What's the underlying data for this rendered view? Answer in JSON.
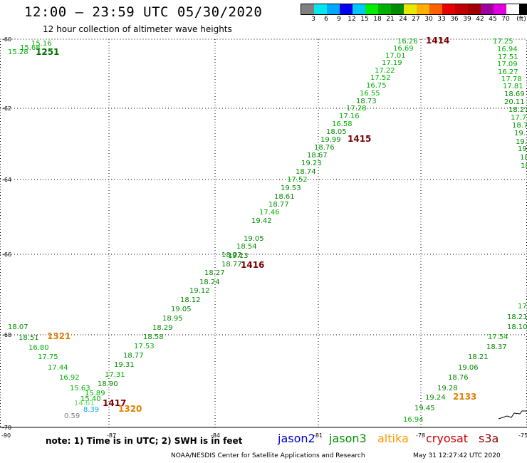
{
  "header": {
    "title": "12:00 – 23:59 UTC 05/30/2020",
    "subtitle": "12 hour collection of altimeter wave heights"
  },
  "colorbar": {
    "colors": [
      "#808080",
      "#00e8ee",
      "#00a8ff",
      "#0000ee",
      "#00c8ff",
      "#00ee00",
      "#00b000",
      "#008c00",
      "#e8e800",
      "#ffb000",
      "#ff6000",
      "#e80000",
      "#c00000",
      "#a00000",
      "#a000a0",
      "#e000e0",
      "#ffffff",
      "#000000"
    ],
    "tick_labels": [
      "3",
      "6",
      "9",
      "12",
      "15",
      "18",
      "21",
      "24",
      "27",
      "30",
      "33",
      "36",
      "39",
      "42",
      "45",
      "70",
      "(ft)"
    ]
  },
  "axes": {
    "lat_labels": [
      "-60",
      "-62",
      "-64",
      "-66",
      "-68",
      "-70"
    ],
    "lon_labels": [
      "-90",
      "-87",
      "-84",
      "-81",
      "-78",
      "-75"
    ]
  },
  "tracks": [
    {
      "id": "1251",
      "id_color": "#007000",
      "points": [
        {
          "v": "15.16",
          "c": "#00b000"
        },
        {
          "v": "15.68",
          "c": "#00b000"
        },
        {
          "v": "15.28",
          "c": "#00b000"
        }
      ]
    },
    {
      "id": "1414",
      "id_color": "#7a0000",
      "points": [
        {
          "v": "16.26",
          "c": "#00b000"
        },
        {
          "v": "16.69",
          "c": "#00b000"
        },
        {
          "v": "17.01",
          "c": "#00b000"
        },
        {
          "v": "17.19",
          "c": "#00b000"
        },
        {
          "v": "17.22",
          "c": "#00b000"
        },
        {
          "v": "17.52",
          "c": "#00b000"
        },
        {
          "v": "16.75",
          "c": "#00b000"
        },
        {
          "v": "16.55",
          "c": "#00b000"
        },
        {
          "v": "18.73",
          "c": "#008c00"
        },
        {
          "v": "17.28",
          "c": "#00b000"
        },
        {
          "v": "17.16",
          "c": "#00b000"
        },
        {
          "v": "16.58",
          "c": "#00b000"
        },
        {
          "v": "18.05",
          "c": "#008c00"
        },
        {
          "v": "19.99",
          "c": "#008c00"
        }
      ]
    },
    {
      "id": "1415",
      "id_color": "#7a0000",
      "points": [
        {
          "v": "18.76",
          "c": "#008c00"
        },
        {
          "v": "18.67",
          "c": "#008c00"
        },
        {
          "v": "19.23",
          "c": "#008c00"
        },
        {
          "v": "18.74",
          "c": "#008c00"
        },
        {
          "v": "17.52",
          "c": "#00b000"
        },
        {
          "v": "19.53",
          "c": "#008c00"
        },
        {
          "v": "18.61",
          "c": "#008c00"
        },
        {
          "v": "18.77",
          "c": "#008c00"
        },
        {
          "v": "17.46",
          "c": "#00b000"
        },
        {
          "v": "19.42",
          "c": "#008c00"
        },
        {
          "v": "19.05",
          "c": "#008c00"
        },
        {
          "v": "18.54",
          "c": "#008c00"
        },
        {
          "v": "19.13",
          "c": "#008c00"
        },
        {
          "v": "18.22",
          "c": "#008c00"
        },
        {
          "v": "18.77",
          "c": "#008c00"
        }
      ]
    },
    {
      "id": "1416",
      "id_color": "#7a0000",
      "points": [
        {
          "v": "18.27",
          "c": "#008c00"
        },
        {
          "v": "18.24",
          "c": "#008c00"
        },
        {
          "v": "19.12",
          "c": "#008c00"
        },
        {
          "v": "18.12",
          "c": "#008c00"
        },
        {
          "v": "19.05",
          "c": "#008c00"
        },
        {
          "v": "18.95",
          "c": "#008c00"
        },
        {
          "v": "18.29",
          "c": "#008c00"
        },
        {
          "v": "18.58",
          "c": "#008c00"
        },
        {
          "v": "17.53",
          "c": "#00b000"
        },
        {
          "v": "18.77",
          "c": "#008c00"
        },
        {
          "v": "19.31",
          "c": "#008c00"
        },
        {
          "v": "17.31",
          "c": "#00b000"
        },
        {
          "v": "18.90",
          "c": "#008c00"
        },
        {
          "v": "15.89",
          "c": "#00b000"
        },
        {
          "v": "15.40",
          "c": "#00b000"
        }
      ]
    },
    {
      "id": "1417",
      "id_color": "#7a0000",
      "points": []
    },
    {
      "id": "1321",
      "id_color": "#e08000",
      "points": [
        {
          "v": "18.07",
          "c": "#008c00"
        },
        {
          "v": "18.51",
          "c": "#008c00"
        },
        {
          "v": "16.80",
          "c": "#00b000"
        },
        {
          "v": "17.75",
          "c": "#00b000"
        },
        {
          "v": "17.44",
          "c": "#00b000"
        },
        {
          "v": "16.92",
          "c": "#00b000"
        },
        {
          "v": "15.63",
          "c": "#00b000"
        },
        {
          "v": "14.61",
          "c": "#66e066"
        },
        {
          "v": "8.39",
          "c": "#00a8ff"
        },
        {
          "v": "0.59",
          "c": "#808080"
        }
      ]
    },
    {
      "id": "1320",
      "id_color": "#e08000",
      "points": []
    },
    {
      "id": "2133",
      "id_color": "#e08000",
      "points": [
        {
          "v": "17.25",
          "c": "#00b000"
        },
        {
          "v": "16.94",
          "c": "#00b000"
        },
        {
          "v": "17.51",
          "c": "#00b000"
        },
        {
          "v": "17.09",
          "c": "#00b000"
        },
        {
          "v": "16.27",
          "c": "#00b000"
        },
        {
          "v": "17.78",
          "c": "#00b000"
        },
        {
          "v": "17.81",
          "c": "#00b000"
        },
        {
          "v": "18.69",
          "c": "#008c00"
        },
        {
          "v": "20.11",
          "c": "#008c00"
        },
        {
          "v": "18.27",
          "c": "#008c00"
        },
        {
          "v": "17.7",
          "c": "#00b000"
        },
        {
          "v": "18.7",
          "c": "#008c00"
        },
        {
          "v": "19.",
          "c": "#008c00"
        },
        {
          "v": "19.",
          "c": "#008c00"
        },
        {
          "v": "19",
          "c": "#008c00"
        },
        {
          "v": "18",
          "c": "#008c00"
        },
        {
          "v": "18",
          "c": "#008c00"
        },
        {
          "v": "17.",
          "c": "#00b000"
        },
        {
          "v": "18.21",
          "c": "#008c00"
        },
        {
          "v": "18.10",
          "c": "#008c00"
        },
        {
          "v": "17.54",
          "c": "#00b000"
        },
        {
          "v": "18.37",
          "c": "#008c00"
        },
        {
          "v": "18.21",
          "c": "#008c00"
        },
        {
          "v": "19.06",
          "c": "#008c00"
        },
        {
          "v": "18.76",
          "c": "#008c00"
        },
        {
          "v": "19.28",
          "c": "#008c00"
        },
        {
          "v": "19.24",
          "c": "#008c00"
        },
        {
          "v": "19.45",
          "c": "#008c00"
        },
        {
          "v": "16.94",
          "c": "#00b000"
        }
      ]
    }
  ],
  "footer": {
    "note": "note: 1) Time is in UTC; 2) SWH is in feet",
    "legend": [
      {
        "name": "jason2",
        "color": "#0000cc"
      },
      {
        "name": "jason3",
        "color": "#009000"
      },
      {
        "name": "altika",
        "color": "#ff9900"
      },
      {
        "name": "cryosat",
        "color": "#cc0000"
      },
      {
        "name": "s3a",
        "color": "#8b0000"
      }
    ],
    "credit": "NOAA/NESDIS Center for Satellite Applications and Research",
    "timestamp": "May 31 12:27:42 UTC 2020"
  }
}
